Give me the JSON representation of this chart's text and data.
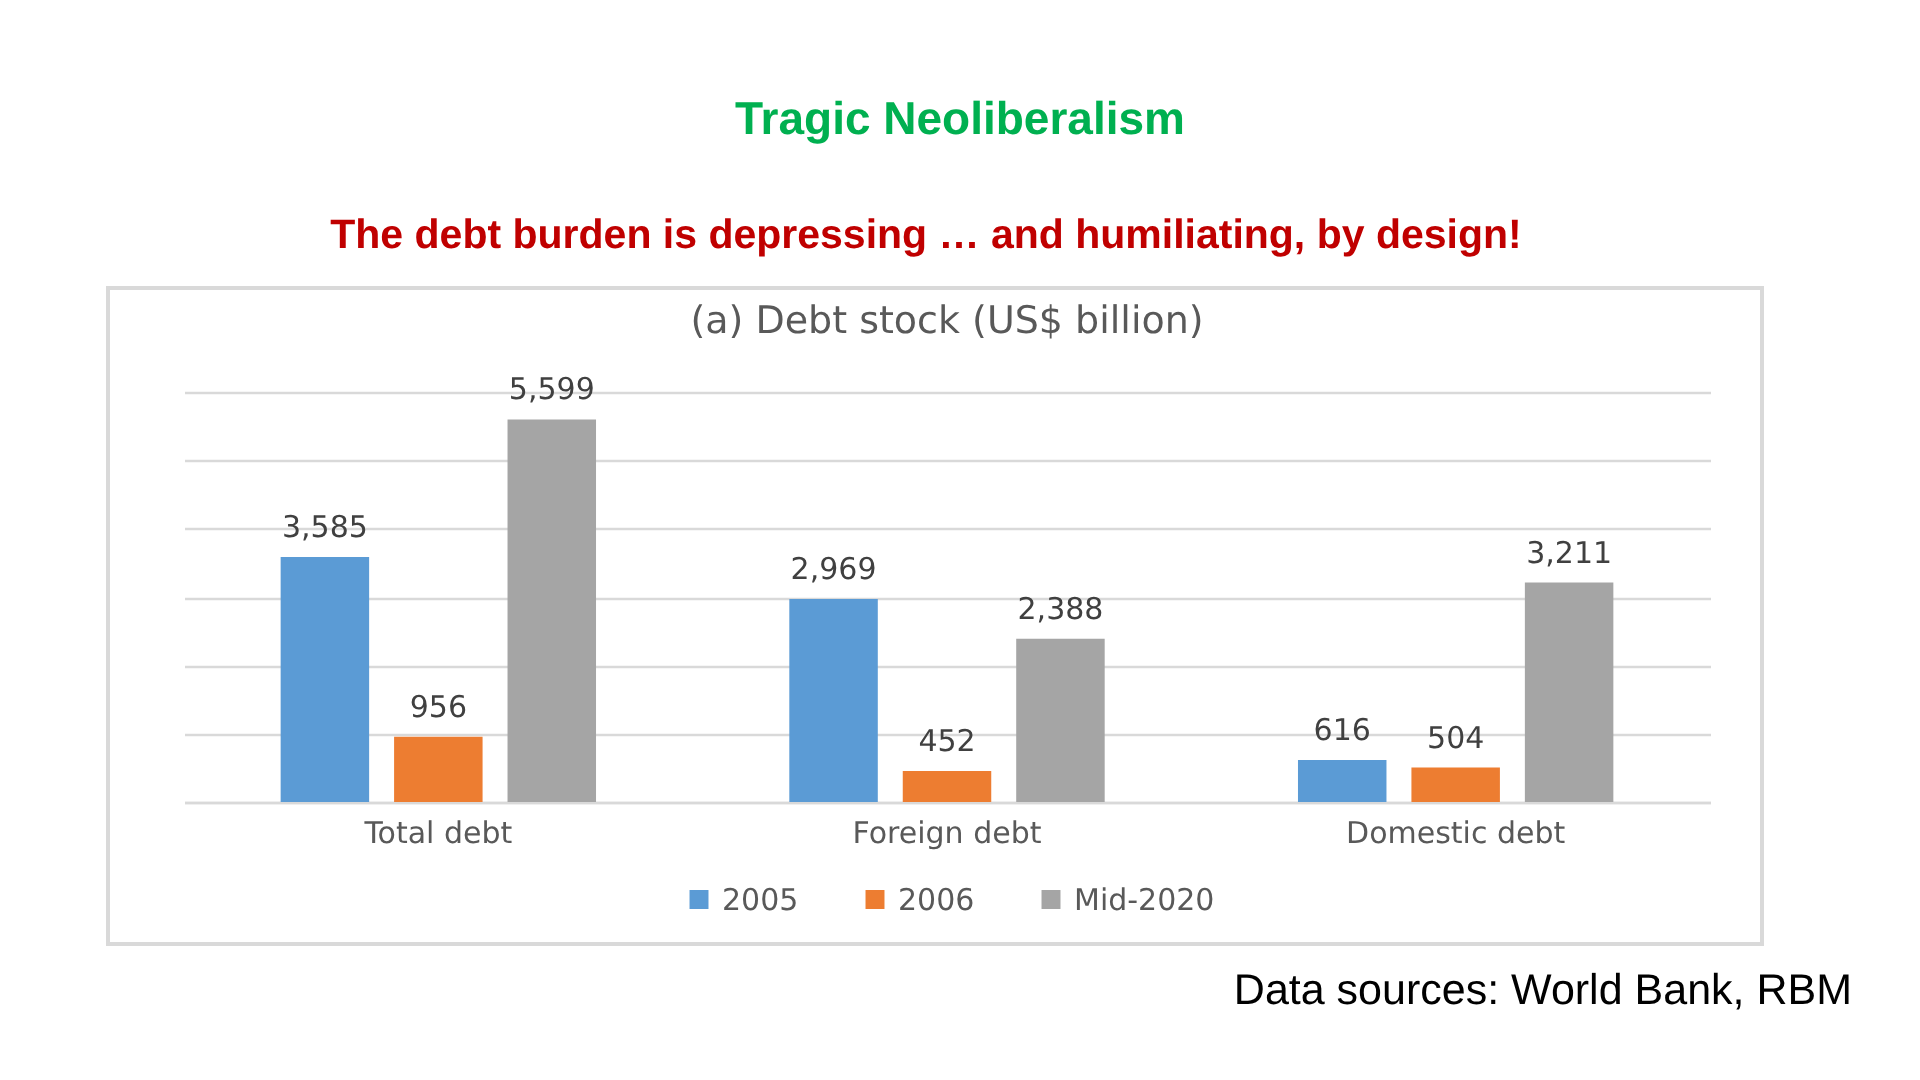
{
  "chart_data": {
    "type": "bar",
    "title": "Tragic Neoliberalism",
    "subtitle": "The debt burden is depressing … and humiliating, by design!",
    "annotations": [
      "(a) Debt stock (US$ billion)",
      "Data sources: World Bank, RBM"
    ],
    "categories": [
      "Total debt",
      "Foreign debt",
      "Domestic debt"
    ],
    "series": [
      {
        "name": "2005",
        "color": "#5b9bd5",
        "values": [
          3585,
          2969,
          616
        ],
        "value_labels": [
          "3,585",
          "2,969",
          "616"
        ]
      },
      {
        "name": "2006",
        "color": "#ed7d31",
        "values": [
          956,
          452,
          504
        ],
        "value_labels": [
          "956",
          "452",
          "504"
        ]
      },
      {
        "name": "Mid-2020",
        "color": "#a5a5a5",
        "values": [
          5599,
          2388,
          3211
        ],
        "value_labels": [
          "5,599",
          "2,388",
          "3,211"
        ]
      }
    ],
    "ylim": [
      0,
      6000
    ],
    "tick_labels": "x",
    "grid": "y",
    "legend": "bottom"
  }
}
